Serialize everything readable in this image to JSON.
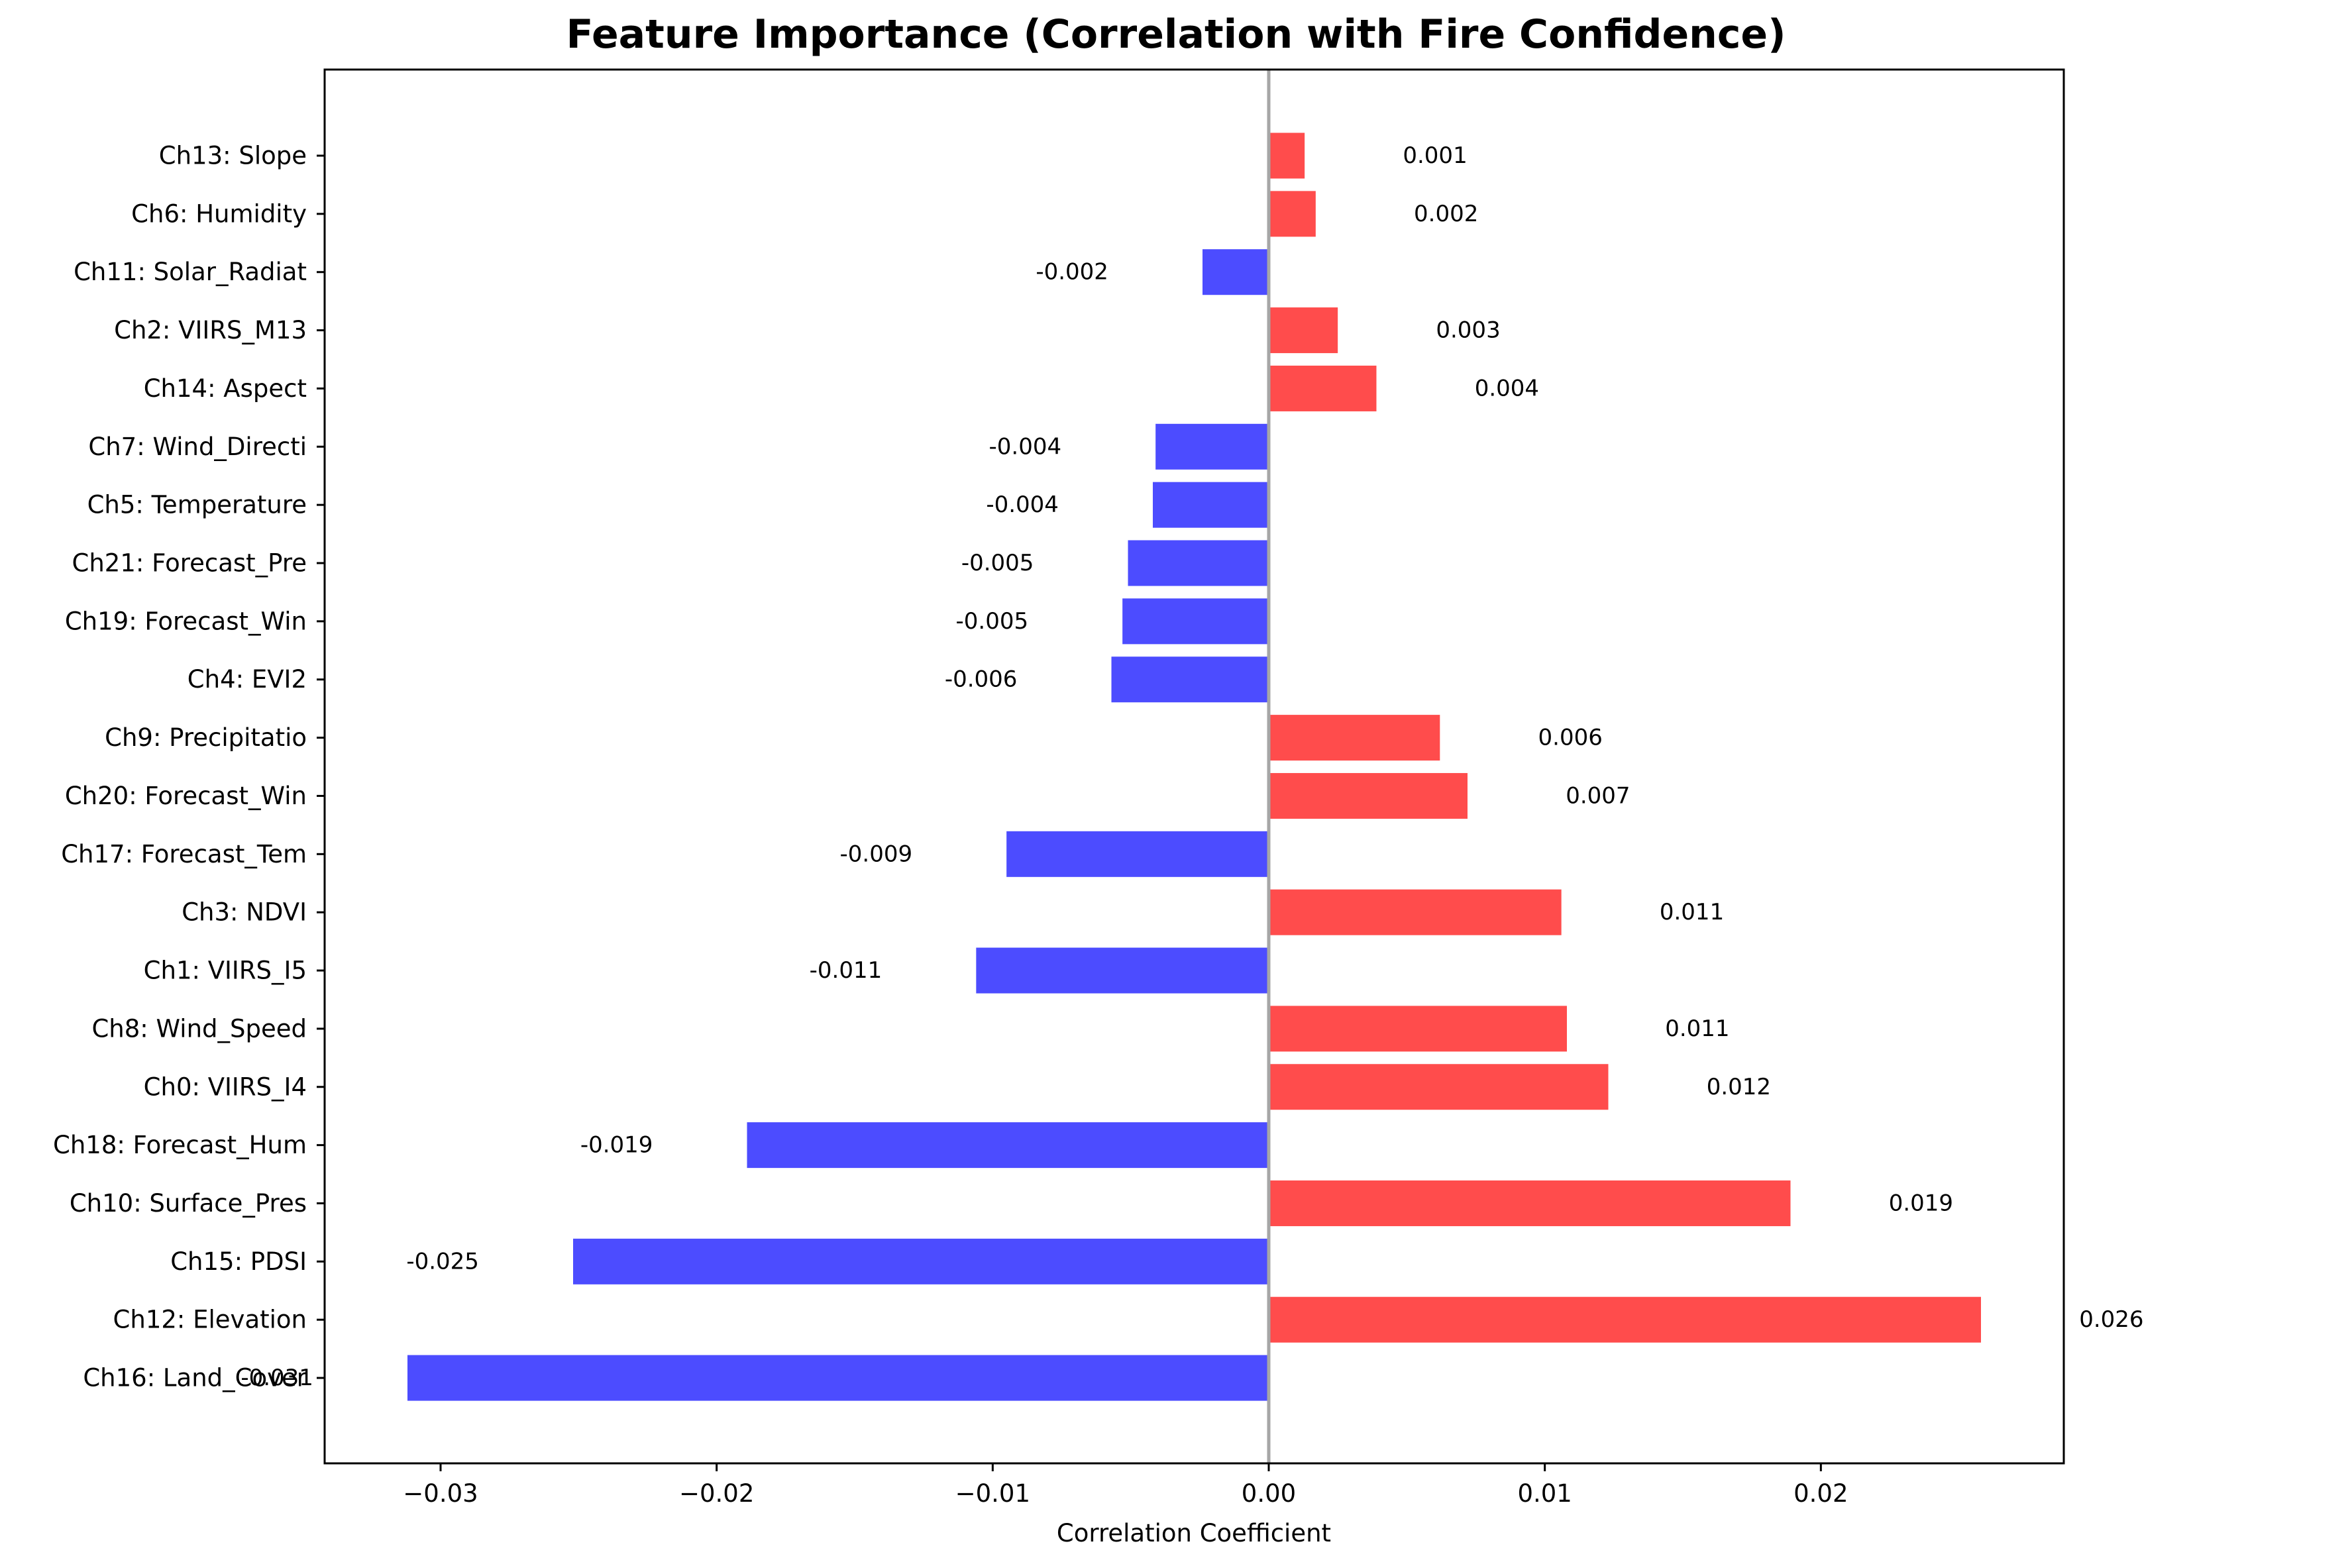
{
  "chart_data": {
    "type": "bar",
    "orientation": "horizontal",
    "title": "Feature Importance (Correlation with Fire Confidence)",
    "xlabel": "Correlation Coefficient",
    "ylabel": "",
    "xlim": [
      -0.0342,
      0.0288
    ],
    "xticks": [
      -0.03,
      -0.02,
      -0.01,
      0.0,
      0.01,
      0.02
    ],
    "xtick_labels": [
      "−0.03",
      "−0.02",
      "−0.01",
      "0.00",
      "0.01",
      "0.02"
    ],
    "grid": false,
    "zero_line": true,
    "colors": {
      "positive": "#ff4c4c",
      "negative": "#4c4cff",
      "zero_line": "#a6a6a6"
    },
    "categories": [
      "Ch13: Slope",
      "Ch6: Humidity",
      "Ch11: Solar_Radiat",
      "Ch2: VIIRS_M13",
      "Ch14: Aspect",
      "Ch7: Wind_Directi",
      "Ch5: Temperature",
      "Ch21: Forecast_Pre",
      "Ch19: Forecast_Win",
      "Ch4: EVI2",
      "Ch9: Precipitatio",
      "Ch20: Forecast_Win",
      "Ch17: Forecast_Tem",
      "Ch3: NDVI",
      "Ch1: VIIRS_I5",
      "Ch8: Wind_Speed",
      "Ch0: VIIRS_I4",
      "Ch18: Forecast_Hum",
      "Ch10: Surface_Pres",
      "Ch15: PDSI",
      "Ch12: Elevation",
      "Ch16: Land_Cover"
    ],
    "values": [
      0.0013,
      0.0017,
      -0.0024,
      0.0025,
      0.0039,
      -0.0041,
      -0.0042,
      -0.0051,
      -0.0053,
      -0.0057,
      0.0062,
      0.0072,
      -0.0095,
      0.0106,
      -0.0106,
      0.0108,
      0.0123,
      -0.0189,
      0.0189,
      -0.0252,
      0.0258,
      -0.0312
    ],
    "value_labels": [
      "0.001",
      "0.002",
      "-0.002",
      "0.003",
      "0.004",
      "-0.004",
      "-0.004",
      "-0.005",
      "-0.005",
      "-0.006",
      "0.006",
      "0.007",
      "-0.009",
      "0.011",
      "-0.011",
      "0.011",
      "0.012",
      "-0.019",
      "0.019",
      "-0.025",
      "0.026",
      "-0.031"
    ]
  }
}
